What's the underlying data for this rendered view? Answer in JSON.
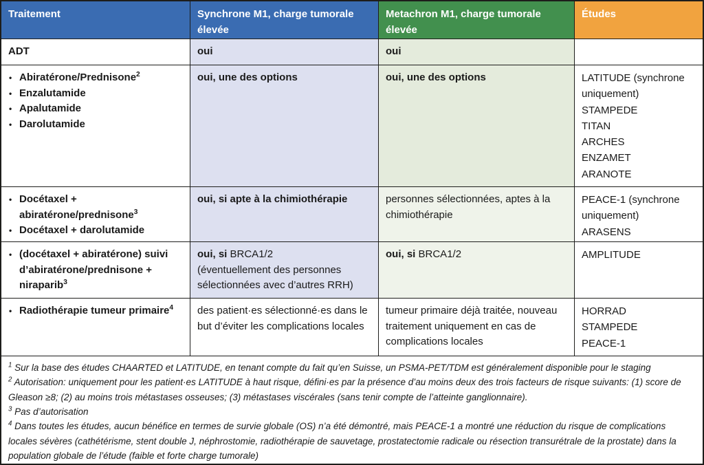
{
  "colors": {
    "header_blue": "#3a6cb2",
    "header_green": "#42904e",
    "header_orange": "#f1a33f",
    "cell_lavender": "#dde0f0",
    "cell_green": "#e4ebdc",
    "cell_green_pale": "#eff3ea",
    "border": "#1d1d1b",
    "text": "#1a1a1a"
  },
  "ui": {
    "bullet": "•"
  },
  "header": {
    "treatment": "Traitement",
    "synchrone": "Synchrone M1, charge tumorale élevée",
    "metachron": "Metachron M1, charge tumorale élevée",
    "etudes": "Études"
  },
  "rows": {
    "adt": {
      "label": "ADT",
      "synchrone": "oui",
      "metachron": "oui",
      "etudes": ""
    },
    "arpi": {
      "bullets": [
        {
          "text": "Abiratérone/Prednisone",
          "sup": "2"
        },
        {
          "text": "Enzalutamide",
          "sup": ""
        },
        {
          "text": "Apalutamide",
          "sup": ""
        },
        {
          "text": "Darolutamide",
          "sup": ""
        }
      ],
      "synchrone": "oui, une des options",
      "metachron": "oui, une des options",
      "etudes": [
        "LATITUDE (synchrone uniquement)",
        "STAMPEDE",
        "TITAN",
        "ARCHES",
        "ENZAMET",
        "ARANOTE"
      ]
    },
    "docetaxel": {
      "bullets": [
        {
          "text": "Docétaxel + abiratérone/prednisone",
          "sup": "3"
        },
        {
          "text": "Docétaxel + darolutamide",
          "sup": ""
        }
      ],
      "synchrone": "oui, si apte à la chimiothérapie",
      "metachron": "personnes sélectionnées, aptes à la chimiothérapie",
      "etudes": [
        "PEACE-1 (synchrone uniquement)",
        "ARASENS"
      ]
    },
    "niraparib": {
      "bullets": [
        {
          "text": "(docétaxel + abiratérone) suivi d’abiratérone/prednisone + niraparib",
          "sup": "3"
        }
      ],
      "synchrone": {
        "bold": "oui, si",
        "normal": "BRCA1/2",
        "note": "(éventuellement des personnes sélectionnées avec d’autres RRH)"
      },
      "metachron": {
        "bold": "oui, si",
        "normal": "BRCA1/2"
      },
      "etudes": [
        "AMPLITUDE"
      ]
    },
    "radiotherapy": {
      "bullets": [
        {
          "text": "Radiothérapie tumeur primaire",
          "sup": "4"
        }
      ],
      "synchrone": "des patient·es sélectionné·es dans le but d’éviter les complications locales",
      "metachron": "tumeur primaire déjà traitée, nouveau traitement uniquement en cas de complications locales",
      "etudes": [
        "HORRAD",
        "STAMPEDE",
        "PEACE-1"
      ]
    }
  },
  "footnotes": [
    {
      "sup": "1",
      "text": "Sur la base des études CHAARTED et LATITUDE, en tenant compte du fait qu’en Suisse, un PSMA-PET/TDM est généralement disponible pour le staging"
    },
    {
      "sup": "2",
      "text": "Autorisation: uniquement pour les patient·es LATITUDE à haut risque, défini·es par la présence d’au moins deux des trois facteurs de risque suivants: (1) score de Gleason ≥8; (2) au moins trois métastases osseuses; (3) métastases viscérales (sans tenir compte de l’atteinte ganglionnaire)."
    },
    {
      "sup": "3",
      "text": "Pas d’autorisation"
    },
    {
      "sup": "4",
      "text": "Dans toutes les études, aucun bénéfice en termes de survie globale (OS) n’a été démontré, mais PEACE-1 a montré une réduction du risque de complications locales sévères (cathétérisme, stent double J, néphrostomie, radiothérapie de sauvetage, prostatectomie radicale ou résection transurétrale de la prostate) dans la population globale de l’étude (faible et forte charge tumorale)"
    }
  ]
}
